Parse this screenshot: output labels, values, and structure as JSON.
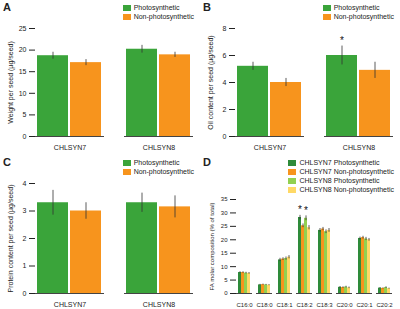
{
  "chart_data": [
    {
      "panel": "A",
      "type": "bar",
      "ylabel": "Weight per seed (µg/seed)",
      "categories": [
        "CHLSYN7",
        "CHLSYN8"
      ],
      "series": [
        {
          "name": "Photosynthetic",
          "color": "#3aa43a",
          "values": [
            18.7,
            20.2
          ],
          "errors": [
            0.8,
            0.9
          ]
        },
        {
          "name": "Non-photosynthetic",
          "color": "#f7941d",
          "values": [
            17.1,
            18.9
          ],
          "errors": [
            0.7,
            0.6
          ]
        }
      ],
      "ylim": [
        0,
        25
      ],
      "yticks": [
        0,
        5,
        10,
        15,
        20,
        25
      ],
      "legend": "top-right",
      "annotations": []
    },
    {
      "panel": "B",
      "type": "bar",
      "ylabel": "Oil content per seed (µg/seed)",
      "categories": [
        "CHLSYN7",
        "CHLSYN8"
      ],
      "series": [
        {
          "name": "Photosynthetic",
          "color": "#3aa43a",
          "values": [
            5.2,
            6.0
          ],
          "errors": [
            0.3,
            0.7
          ]
        },
        {
          "name": "Non-photosynthetic",
          "color": "#f7941d",
          "values": [
            4.0,
            4.9
          ],
          "errors": [
            0.3,
            0.6
          ]
        }
      ],
      "ylim": [
        0,
        8
      ],
      "yticks": [
        0,
        2,
        4,
        6,
        8
      ],
      "legend": "top-right",
      "annotations": [
        {
          "category": "CHLSYN8",
          "series": "Photosynthetic",
          "text": "*"
        }
      ]
    },
    {
      "panel": "C",
      "type": "bar",
      "ylabel": "Protein content per seed (µg/seed)",
      "categories": [
        "CHLSYN7",
        "CHLSYN8"
      ],
      "series": [
        {
          "name": "Photosynthetic",
          "color": "#3aa43a",
          "values": [
            3.3,
            3.3
          ],
          "errors": [
            0.45,
            0.35
          ]
        },
        {
          "name": "Non-photosynthetic",
          "color": "#f7941d",
          "values": [
            3.0,
            3.15
          ],
          "errors": [
            0.3,
            0.4
          ]
        }
      ],
      "ylim": [
        0,
        4
      ],
      "yticks": [
        0,
        1,
        2,
        3,
        4
      ],
      "legend": "top-right",
      "annotations": []
    },
    {
      "panel": "D",
      "type": "bar",
      "ylabel": "FA molar composition (% of total)",
      "categories": [
        "C16:0",
        "C18:0",
        "C18:1",
        "C18:2",
        "C18:3",
        "C20:0",
        "C20:1",
        "C20:2"
      ],
      "series": [
        {
          "name": "CHLSYN7 Photosynthetic",
          "color": "#2e8b3a",
          "values": [
            7.8,
            3.2,
            12.5,
            28.3,
            23.5,
            2.3,
            20.5,
            2.0
          ],
          "errors": [
            0.3,
            0.2,
            0.6,
            0.8,
            0.7,
            0.3,
            0.5,
            0.2
          ]
        },
        {
          "name": "CHLSYN7 Non-photosynthetic",
          "color": "#f7941d",
          "values": [
            7.8,
            3.3,
            12.8,
            25.2,
            24.0,
            2.2,
            20.8,
            1.9
          ],
          "errors": [
            0.3,
            0.2,
            0.5,
            0.7,
            0.6,
            0.3,
            0.5,
            0.2
          ]
        },
        {
          "name": "CHLSYN8 Photosynthetic",
          "color": "#92d050",
          "values": [
            7.6,
            3.2,
            13.0,
            28.0,
            23.0,
            2.4,
            20.3,
            2.2
          ],
          "errors": [
            0.3,
            0.2,
            0.6,
            0.9,
            0.7,
            0.3,
            0.6,
            0.3
          ]
        },
        {
          "name": "CHLSYN8 Non-photosynthetic",
          "color": "#ffd966",
          "values": [
            7.5,
            3.1,
            13.5,
            24.5,
            23.5,
            2.1,
            20.0,
            1.8
          ],
          "errors": [
            0.3,
            0.2,
            0.6,
            0.8,
            0.7,
            0.3,
            0.5,
            0.2
          ]
        }
      ],
      "ylim": [
        0,
        35
      ],
      "yticks": [
        0,
        5,
        10,
        15,
        20,
        25,
        30,
        35
      ],
      "legend": "top-right",
      "annotations": [
        {
          "category": "C18:2",
          "series": "CHLSYN7 Photosynthetic",
          "text": "*"
        },
        {
          "category": "C18:2",
          "series": "CHLSYN8 Photosynthetic",
          "text": "*"
        }
      ]
    }
  ]
}
